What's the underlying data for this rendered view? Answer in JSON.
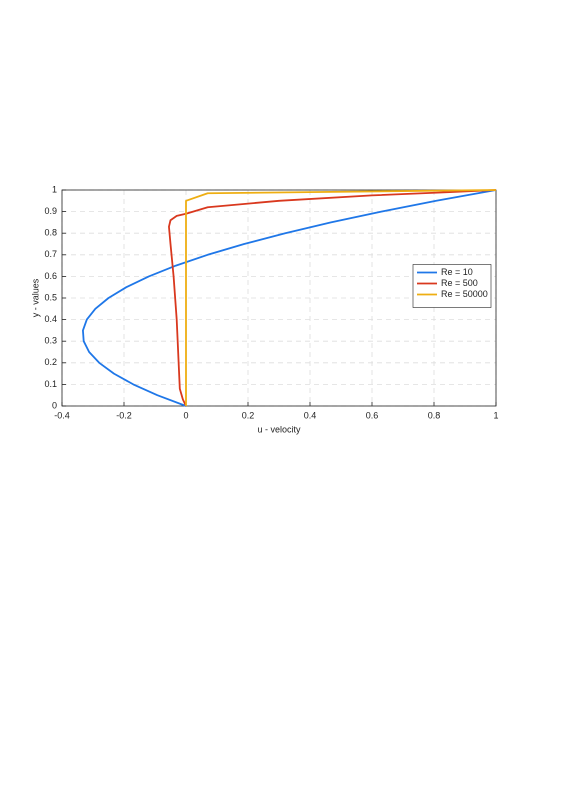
{
  "chart_data": {
    "type": "line",
    "xlabel": "u - velocity",
    "ylabel": "y - values",
    "xlim": [
      -0.4,
      1
    ],
    "ylim": [
      0,
      1
    ],
    "xticks": [
      -0.4,
      -0.2,
      0,
      0.2,
      0.4,
      0.6,
      0.8,
      1
    ],
    "yticks": [
      0,
      0.1,
      0.2,
      0.3,
      0.4,
      0.5,
      0.6,
      0.7,
      0.8,
      0.9,
      1
    ],
    "grid": true,
    "legend": "right",
    "series": [
      {
        "name": "Re = 10",
        "color": "#1f77e8",
        "x": [
          0,
          -0.0925,
          -0.17,
          -0.2325,
          -0.28,
          -0.3125,
          -0.33,
          -0.3325,
          -0.32,
          -0.2925,
          -0.25,
          -0.1925,
          -0.12,
          -0.0325,
          0.07,
          0.1875,
          0.32,
          0.4675,
          0.63,
          0.8075,
          1
        ],
        "values": [
          0,
          0.05,
          0.1,
          0.15,
          0.2,
          0.25,
          0.3,
          0.35,
          0.4,
          0.45,
          0.5,
          0.55,
          0.6,
          0.65,
          0.7,
          0.75,
          0.8,
          0.85,
          0.9,
          0.95,
          1
        ]
      },
      {
        "name": "Re = 500",
        "color": "#d9381e",
        "x": [
          0,
          -0.01,
          -0.02,
          -0.03,
          -0.04,
          -0.05,
          -0.055,
          -0.05,
          -0.03,
          0,
          0.07,
          0.3,
          0.6,
          0.85,
          1
        ],
        "values": [
          0,
          0.03,
          0.08,
          0.4,
          0.6,
          0.75,
          0.83,
          0.86,
          0.88,
          0.89,
          0.92,
          0.95,
          0.975,
          0.99,
          1
        ]
      },
      {
        "name": "Re = 50000",
        "color": "#eeae12",
        "x": [
          0,
          0,
          0.07,
          0.4,
          1
        ],
        "values": [
          0,
          0.95,
          0.985,
          0.99,
          1
        ]
      }
    ]
  }
}
